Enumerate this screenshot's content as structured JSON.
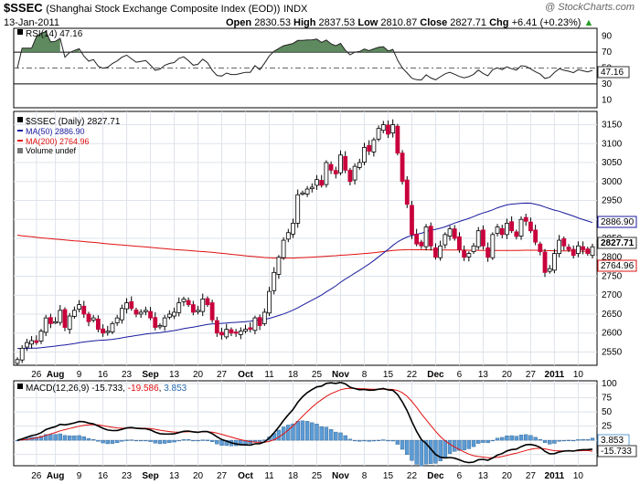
{
  "header": {
    "symbol": "$SSEC",
    "full_name": "(Shanghai Stock Exchange Composite Index (EOD))",
    "exchange": "INDX",
    "credit": "@ StockCharts.com",
    "date": "13-Jan-2011",
    "open_label": "Open",
    "open": "2830.53",
    "high_label": "High",
    "high": "2837.53",
    "low_label": "Low",
    "low": "2810.87",
    "close_label": "Close",
    "close": "2827.71",
    "chg_label": "Chg",
    "chg": "+6.41 (+0.23%)",
    "chg_arrow": "▲"
  },
  "rsi_panel": {
    "legend": "RSI(14) 47.16",
    "current_tag": "47.16"
  },
  "price_panel": {
    "legend_main": "$SSEC (Daily) 2827.71",
    "legend_ma50": "MA(50) 2886.90",
    "legend_ma200": "MA(200) 2764.96",
    "legend_volume": "Volume undef",
    "tag_ma50": "2886.90",
    "tag_close": "2827.71",
    "tag_ma200": "2764.96"
  },
  "macd_panel": {
    "legend_prefix": "MACD(12,26,9)",
    "macd": "-15.733",
    "signal": "-19.586",
    "hist": "3.853",
    "tag_hist": "3.853",
    "tag_macd": "-15.733"
  },
  "colors": {
    "up": "#ffffff",
    "down": "#c8003c",
    "ma50": "#1a1a9e",
    "ma200": "#e01010",
    "rsi_fill": "#4e7d4e",
    "macd_hist": "#5b9bd5",
    "signal": "#e01010"
  },
  "x_tick_labels": [
    "26",
    "Aug",
    "9",
    "16",
    "23",
    "Sep",
    "13",
    "20",
    "27",
    "Oct",
    "11",
    "18",
    "25",
    "Nov",
    "8",
    "15",
    "22",
    "Dec",
    "6",
    "13",
    "20",
    "27",
    "2011",
    "10"
  ],
  "chart_data": {
    "type": "candlestick",
    "title": "$SSEC Shanghai Stock Exchange Composite Index (EOD) INDX",
    "date_range": [
      "2010-07-20",
      "2011-01-13"
    ],
    "price_axis": {
      "ticks": [
        2550,
        2600,
        2650,
        2700,
        2750,
        2800,
        2850,
        2900,
        2950,
        3000,
        3050,
        3100,
        3150
      ],
      "ylim": [
        2515,
        3185
      ]
    },
    "closes": [
      2530,
      2560,
      2575,
      2580,
      2575,
      2605,
      2640,
      2625,
      2630,
      2660,
      2615,
      2645,
      2660,
      2675,
      2650,
      2630,
      2640,
      2610,
      2600,
      2605,
      2625,
      2640,
      2665,
      2680,
      2665,
      2650,
      2655,
      2660,
      2640,
      2615,
      2620,
      2640,
      2650,
      2655,
      2680,
      2690,
      2675,
      2655,
      2660,
      2690,
      2675,
      2635,
      2600,
      2595,
      2610,
      2600,
      2600,
      2605,
      2610,
      2610,
      2640,
      2620,
      2655,
      2710,
      2760,
      2800,
      2845,
      2865,
      2890,
      2965,
      2970,
      2980,
      2985,
      3005,
      2990,
      3050,
      3030,
      3020,
      3070,
      3030,
      3000,
      3040,
      3050,
      3090,
      3080,
      3110,
      3140,
      3150,
      3125,
      3150,
      3075,
      3000,
      2940,
      2860,
      2835,
      2830,
      2880,
      2830,
      2800,
      2830,
      2860,
      2875,
      2850,
      2820,
      2800,
      2810,
      2830,
      2870,
      2830,
      2800,
      2860,
      2880,
      2860,
      2890,
      2870,
      2855,
      2900,
      2895,
      2870,
      2840,
      2815,
      2760,
      2770,
      2810,
      2845,
      2830,
      2820,
      2805,
      2830,
      2820,
      2810,
      2827.71
    ],
    "ma50_last": 2886.9,
    "ma200_last": 2764.96,
    "rsi": {
      "period": 14,
      "last": 47.16,
      "ylim": [
        0,
        100
      ],
      "ticks": [
        10,
        30,
        50,
        70,
        90
      ]
    },
    "macd": {
      "fast": 12,
      "slow": 26,
      "signal": 9,
      "macd_last": -15.733,
      "signal_last": -19.586,
      "hist_last": 3.853,
      "ylim": [
        -45,
        105
      ],
      "ticks": [
        -25,
        0,
        25,
        50,
        75,
        100
      ]
    }
  }
}
